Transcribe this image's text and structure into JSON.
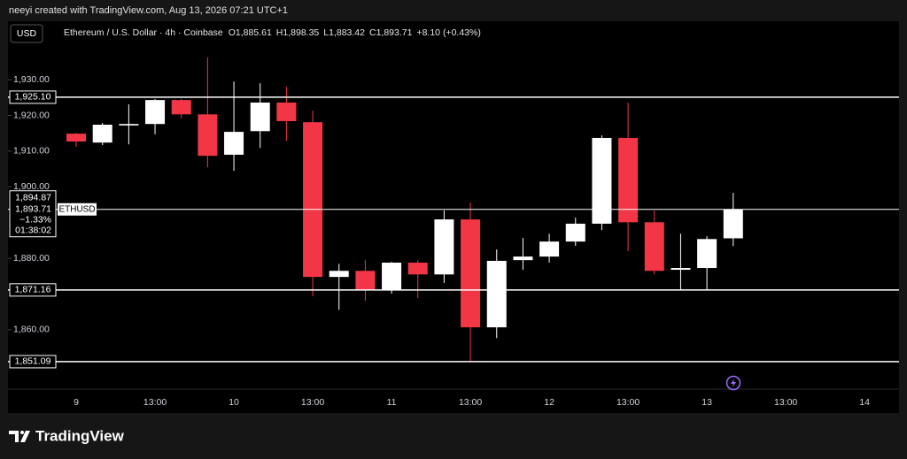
{
  "header": {
    "watermark": "neeyi created with TradingView.com, Aug 13, 2026 07:21 UTC+1",
    "currency": "USD",
    "symbol": "Ethereum / U.S. Dollar · 4h · Coinbase",
    "ohlc": [
      {
        "prefix": "O",
        "value": "1,885.61"
      },
      {
        "prefix": "H",
        "value": "1,898.35"
      },
      {
        "prefix": "L",
        "value": "1,883.42"
      },
      {
        "prefix": "C",
        "value": "1,893.71"
      }
    ],
    "change": "+8.10 (+0.43%)"
  },
  "chart_data": {
    "type": "candlestick",
    "categories": [
      "9",
      null,
      null,
      "13:00",
      null,
      null,
      "10",
      null,
      null,
      "13:00",
      null,
      null,
      "11",
      null,
      null,
      "13:00",
      null,
      null,
      "12",
      null,
      null,
      "13:00",
      null,
      null,
      "13",
      null,
      null,
      "13:00",
      null,
      null,
      "14"
    ],
    "open": [
      1914.9,
      1912.4,
      1917.2,
      1917.6,
      1924.3,
      1920.3,
      1909.0,
      1915.6,
      1923.6,
      1918.1,
      1874.8,
      1876.5,
      1871.1,
      1878.8,
      1875.5,
      1890.9,
      1860.7,
      1879.5,
      1880.5,
      1884.7,
      1889.7,
      1913.7,
      1890.1,
      1876.8,
      1877.3,
      1885.61,
      null,
      null,
      null,
      null,
      null
    ],
    "high": [
      1915.1,
      1917.9,
      1923.1,
      1924.6,
      1924.6,
      1936.2,
      1929.5,
      1929.0,
      1928.0,
      1921.3,
      1878.5,
      1879.5,
      1879.0,
      1879.5,
      1893.4,
      1895.6,
      1882.5,
      1885.7,
      1886.9,
      1891.4,
      1914.4,
      1923.6,
      1893.4,
      1886.9,
      1886.2,
      1898.35,
      null,
      null,
      null,
      null,
      null
    ],
    "low": [
      1911.2,
      1911.7,
      1911.9,
      1914.7,
      1919.1,
      1905.5,
      1904.5,
      1910.9,
      1912.9,
      1869.4,
      1865.6,
      1868.1,
      1870.1,
      1868.9,
      1873.1,
      1851.3,
      1857.7,
      1876.8,
      1878.8,
      1883.5,
      1887.9,
      1882.0,
      1875.5,
      1871.1,
      1871.1,
      1883.42,
      null,
      null,
      null,
      null,
      null
    ],
    "close": [
      1912.7,
      1917.4,
      1917.6,
      1924.3,
      1920.3,
      1908.7,
      1915.4,
      1923.6,
      1918.4,
      1874.8,
      1876.5,
      1871.1,
      1878.8,
      1875.5,
      1890.9,
      1860.7,
      1879.3,
      1880.5,
      1884.7,
      1889.7,
      1913.7,
      1890.1,
      1876.5,
      1877.3,
      1885.4,
      1893.71,
      null,
      null,
      null,
      null,
      null
    ],
    "up_color": "#ffffff",
    "down_color": "#f23645",
    "ylim": [
      1843.4,
      1942.4
    ],
    "yticks": [
      {
        "value": 1860,
        "label": "1,860.00"
      },
      {
        "value": 1880,
        "label": "1,880.00"
      },
      {
        "value": 1900,
        "label": "1,900.00"
      },
      {
        "value": 1910,
        "label": "1,910.00"
      },
      {
        "value": 1920,
        "label": "1,920.00"
      },
      {
        "value": 1930,
        "label": "1,930.00"
      }
    ],
    "hlines": [
      {
        "value": 1925.1,
        "label": "1,925.10"
      },
      {
        "value": 1871.16,
        "label": "1,871.16"
      },
      {
        "value": 1851.09,
        "label": "1,851.09"
      }
    ],
    "price_line": {
      "value": 1893.71,
      "label": "1,893.71",
      "last": "1,894.87",
      "change": "−1.33%",
      "countdown": "01:38:02",
      "symbol": "ETHUSD"
    }
  },
  "footer": {
    "brand": "TradingView"
  }
}
